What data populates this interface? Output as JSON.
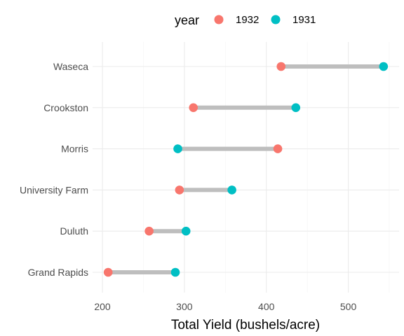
{
  "chart_data": {
    "type": "dumbbell",
    "xlabel": "Total Yield (bushels/acre)",
    "ylabel": "",
    "xlim": [
      188,
      562
    ],
    "xticks": [
      200,
      300,
      400,
      500
    ],
    "grid": true,
    "legend": {
      "title": "year",
      "position": "top",
      "entries": [
        {
          "name": "1932",
          "color": "#F8766D"
        },
        {
          "name": "1931",
          "color": "#00BFC4"
        }
      ]
    },
    "connector_color": "#bebebe",
    "categories": [
      "Waseca",
      "Crookston",
      "Morris",
      "University Farm",
      "Duluth",
      "Grand Rapids"
    ],
    "series": [
      {
        "name": "1932",
        "color": "#F8766D",
        "values": [
          418,
          311,
          414,
          294,
          257,
          207
        ]
      },
      {
        "name": "1931",
        "color": "#00BFC4",
        "values": [
          543,
          436,
          292,
          358,
          302,
          289
        ]
      }
    ]
  }
}
